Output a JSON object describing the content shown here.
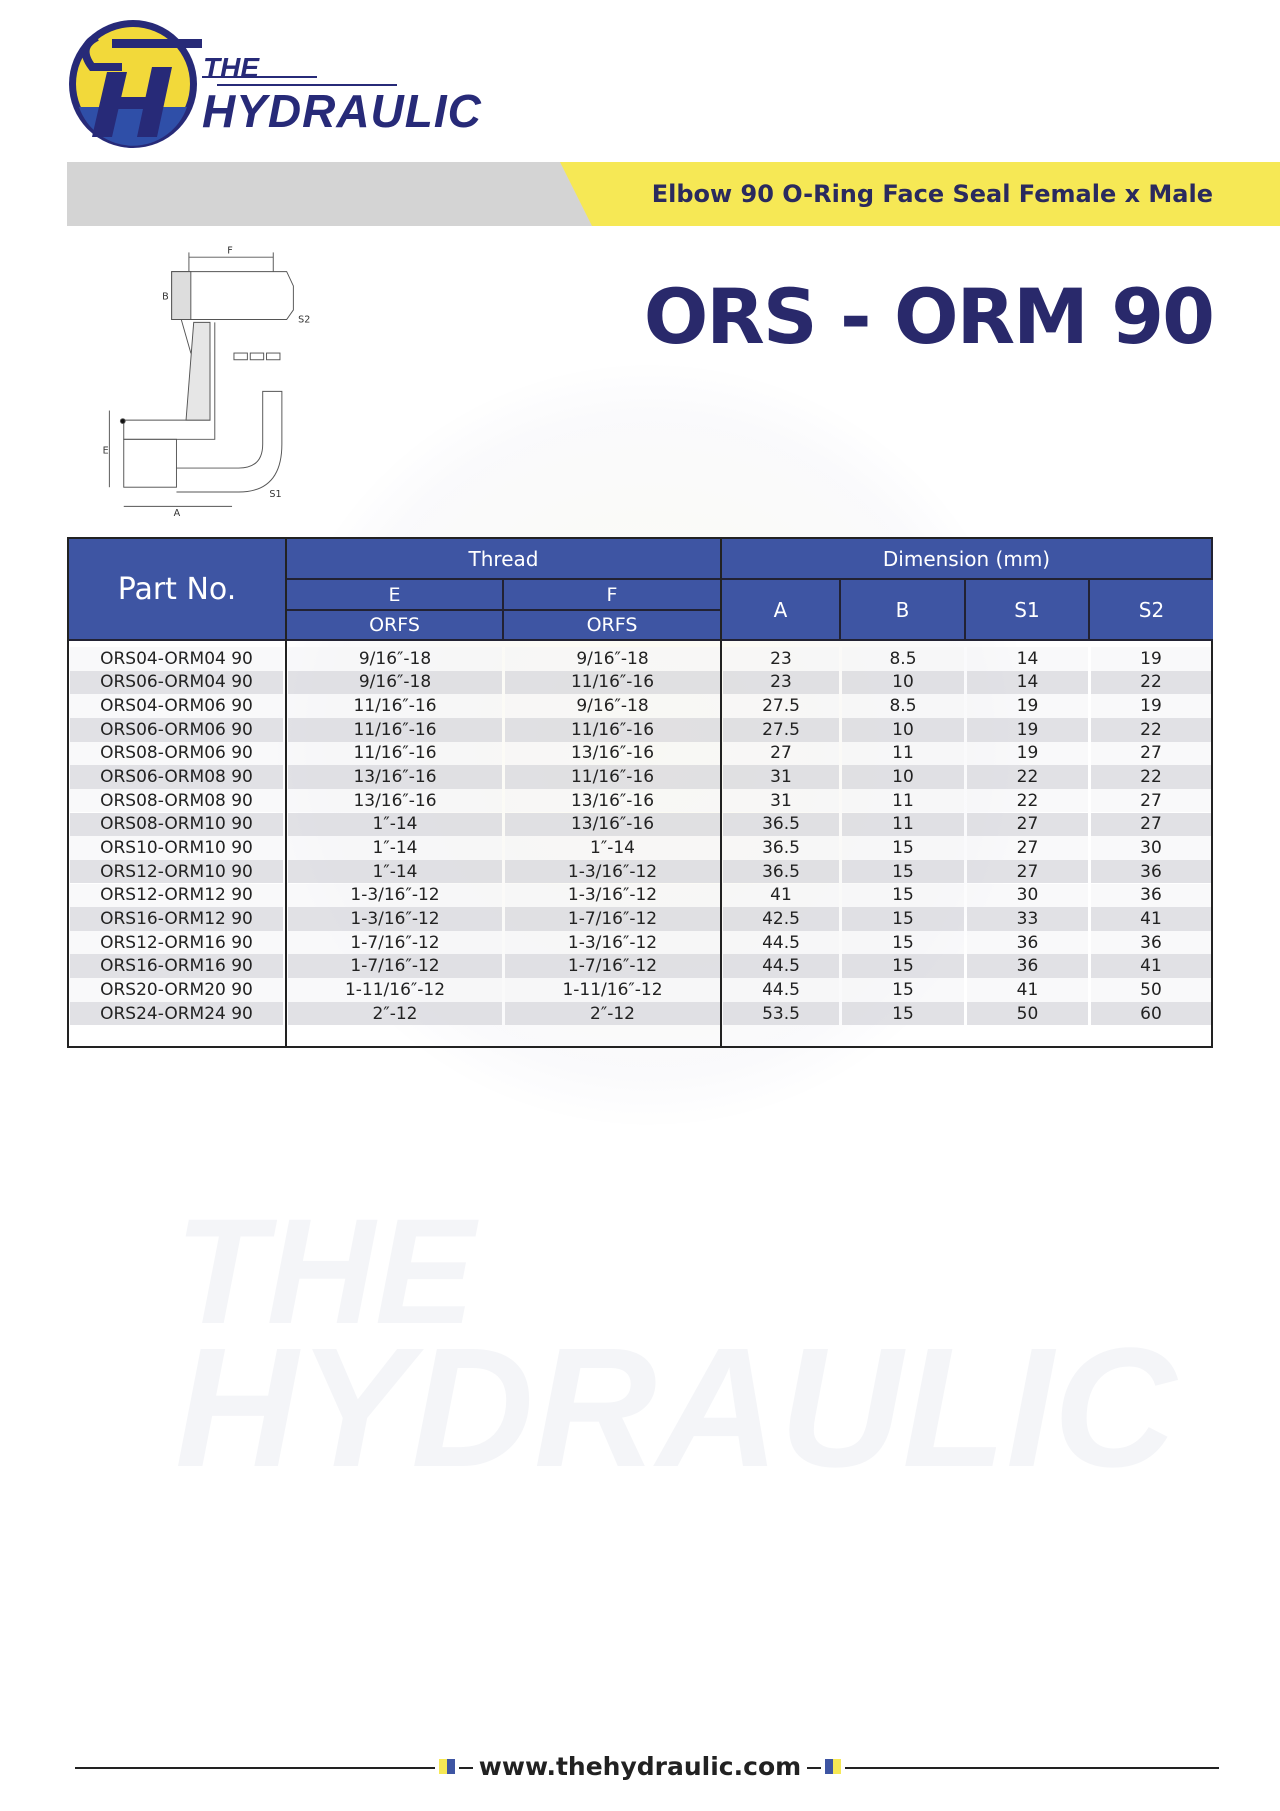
{
  "brand": {
    "line1": "THE",
    "line2": "HYDRAULIC",
    "colors": {
      "navy": "#272a78",
      "yellow": "#f6e855",
      "blue": "#3e55a3"
    }
  },
  "header": {
    "subtitle": "Elbow 90 O-Ring Face Seal Female x Male",
    "product_code": "ORS - ORM 90"
  },
  "diagram": {
    "labels": {
      "F": "F",
      "B": "B",
      "S2": "S2",
      "E": "E",
      "A": "A",
      "S1": "S1"
    }
  },
  "table": {
    "part_header": "Part No.",
    "thread_header": "Thread",
    "dimension_header": "Dimension (mm)",
    "e_header": "E",
    "f_header": "F",
    "e_sub": "ORFS",
    "f_sub": "ORFS",
    "dim_cols": [
      "A",
      "B",
      "S1",
      "S2"
    ],
    "rows": [
      [
        "ORS04-ORM04 90",
        "9/16″-18",
        "9/16″-18",
        "23",
        "8.5",
        "14",
        "19"
      ],
      [
        "ORS06-ORM04 90",
        "9/16″-18",
        "11/16″-16",
        "23",
        "10",
        "14",
        "22"
      ],
      [
        "ORS04-ORM06 90",
        "11/16″-16",
        "9/16″-18",
        "27.5",
        "8.5",
        "19",
        "19"
      ],
      [
        "ORS06-ORM06 90",
        "11/16″-16",
        "11/16″-16",
        "27.5",
        "10",
        "19",
        "22"
      ],
      [
        "ORS08-ORM06 90",
        "11/16″-16",
        "13/16″-16",
        "27",
        "11",
        "19",
        "27"
      ],
      [
        "ORS06-ORM08 90",
        "13/16″-16",
        "11/16″-16",
        "31",
        "10",
        "22",
        "22"
      ],
      [
        "ORS08-ORM08 90",
        "13/16″-16",
        "13/16″-16",
        "31",
        "11",
        "22",
        "27"
      ],
      [
        "ORS08-ORM10 90",
        "1″-14",
        "13/16″-16",
        "36.5",
        "11",
        "27",
        "27"
      ],
      [
        "ORS10-ORM10 90",
        "1″-14",
        "1″-14",
        "36.5",
        "15",
        "27",
        "30"
      ],
      [
        "ORS12-ORM10 90",
        "1″-14",
        "1-3/16″-12",
        "36.5",
        "15",
        "27",
        "36"
      ],
      [
        "ORS12-ORM12 90",
        "1-3/16″-12",
        "1-3/16″-12",
        "41",
        "15",
        "30",
        "36"
      ],
      [
        "ORS16-ORM12 90",
        "1-3/16″-12",
        "1-7/16″-12",
        "42.5",
        "15",
        "33",
        "41"
      ],
      [
        "ORS12-ORM16 90",
        "1-7/16″-12",
        "1-3/16″-12",
        "44.5",
        "15",
        "36",
        "36"
      ],
      [
        "ORS16-ORM16 90",
        "1-7/16″-12",
        "1-7/16″-12",
        "44.5",
        "15",
        "36",
        "41"
      ],
      [
        "ORS20-ORM20 90",
        "1-11/16″-12",
        "1-11/16″-12",
        "44.5",
        "15",
        "41",
        "50"
      ],
      [
        "ORS24-ORM24 90",
        "2″-12",
        "2″-12",
        "53.5",
        "15",
        "50",
        "60"
      ]
    ]
  },
  "footer": {
    "url": "www.thehydraulic.com"
  }
}
